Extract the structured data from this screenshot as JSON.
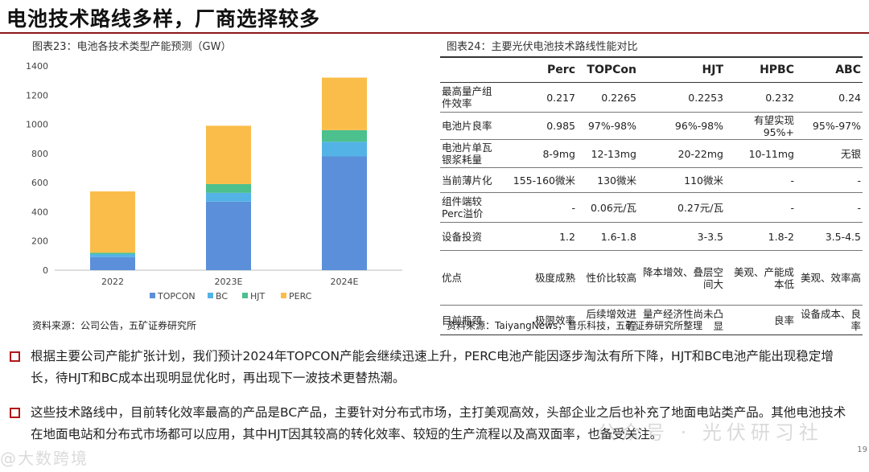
{
  "page": {
    "title": "电池技术路线多样，厂商选择较多",
    "page_number": "19"
  },
  "left_figure": {
    "caption": "图表23：电池各技术类型产能预测（GW）",
    "source": "资料来源：公司公告，五矿证券研究所"
  },
  "chart_data": {
    "type": "bar",
    "stacked": true,
    "title": "",
    "xlabel": "",
    "ylabel": "",
    "categories": [
      "2022",
      "2023E",
      "2024E"
    ],
    "series": [
      {
        "name": "TOPCON",
        "color": "#5b8fd9",
        "values": [
          90,
          470,
          780
        ]
      },
      {
        "name": "BC",
        "color": "#54b3e6",
        "values": [
          20,
          60,
          100
        ]
      },
      {
        "name": "HJT",
        "color": "#4cc08d",
        "values": [
          10,
          60,
          80
        ]
      },
      {
        "name": "PERC",
        "color": "#fbbd4a",
        "values": [
          420,
          400,
          360
        ]
      }
    ],
    "ylim": [
      0,
      1400
    ],
    "yticks": [
      0,
      200,
      400,
      600,
      800,
      1000,
      1200,
      1400
    ],
    "legend_position": "bottom",
    "grid": false
  },
  "right_figure": {
    "caption": "图表24：主要光伏电池技术路线性能对比",
    "source": "资料来源：TaiyangNews，普乐科技，五矿证券研究所整理",
    "columns": [
      "",
      "Perc",
      "TOPCon",
      "HJT",
      "HPBC",
      "ABC"
    ],
    "rows": [
      [
        "最高量产组件效率",
        "0.217",
        "0.2265",
        "0.2253",
        "0.232",
        "0.24"
      ],
      [
        "电池片良率",
        "0.985",
        "97%-98%",
        "96%-98%",
        "有望实现95%+",
        "95%-97%"
      ],
      [
        "电池片单瓦银浆耗量",
        "8-9mg",
        "12-13mg",
        "20-22mg",
        "10-11mg",
        "无银"
      ],
      [
        "当前薄片化",
        "155-160微米",
        "130微米",
        "110微米",
        "-",
        "-"
      ],
      [
        "组件端较Perc溢价",
        "-",
        "0.06元/瓦",
        "0.27元/瓦",
        "-",
        "-"
      ],
      [
        "设备投资",
        "1.2",
        "1.6-1.8",
        "3-3.5",
        "1.8-2",
        "3.5-4.5"
      ],
      [
        "优点",
        "极度成熟",
        "性价比较高",
        "降本增效、叠层空间大",
        "美观、产能成本低",
        "美观、效率高"
      ],
      [
        "目前瓶颈",
        "极限效率",
        "后续增效进程",
        "量产经济性尚未凸显",
        "良率",
        "设备成本、良率"
      ]
    ]
  },
  "bullets": [
    "根据主要公司产能扩张计划，我们预计2024年TOPCON产能会继续迅速上升，PERC电池产能因逐步淘汰有所下降，HJT和BC电池产能出现稳定增长，待HJT和BC成本出现明显优化时，再出现下一波技术更替热潮。",
    "这些技术路线中，目前转化效率最高的产品是BC产品，主要针对分布式市场，主打美观高效，头部企业之后也补充了地面电站类产品。其他电池技术在地面电站和分布式市场都可以应用，其中HJT因其较高的转化效率、较短的生产流程以及高双面率，也备受关注。"
  ],
  "watermarks": {
    "right": "公众号 · 光伏研习社",
    "left": "@大数跨境"
  }
}
